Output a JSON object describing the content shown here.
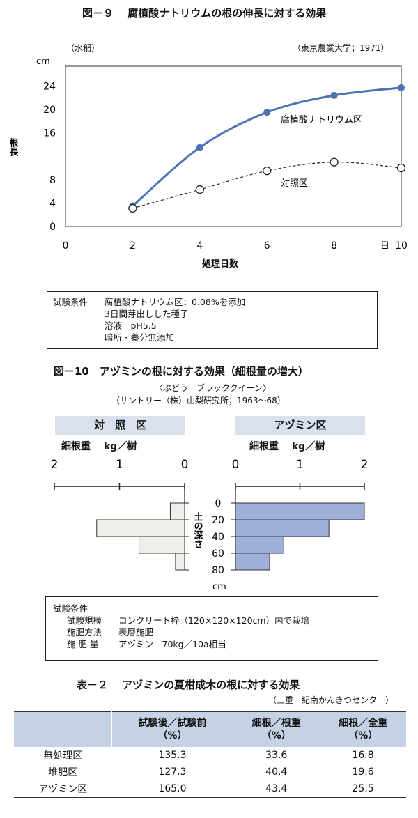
{
  "fig9": {
    "title": "図－９　 腐植酸ナトリウムの根の伸長に対する効果",
    "subject": "（水稲）",
    "source": "（東京農業大学；1971）",
    "ylabel": "根長",
    "yunit": "cm",
    "xlabel": "処理日数",
    "xunit": "日",
    "conditions": [
      {
        "label": "試験条件",
        "text": "腐植酸ナトリウム区：0.08%を添加"
      },
      {
        "label": "",
        "text": "3日間芽出しした種子"
      },
      {
        "label": "",
        "text": "溶液　pH5.5"
      },
      {
        "label": "",
        "text": "暗所・養分無添加"
      }
    ]
  },
  "fig10": {
    "title": "図－10　アヅミンの根に対する効果（細根量の増大）",
    "subtitle": "〈ぶどう　ブラッククイーン〉",
    "source": "（サントリー（株）山梨研究所；1963～68）",
    "left_header": "対　照　区",
    "right_header": "アヅミン区",
    "left_axis_label": "細根重　 kg／樹",
    "right_axis_label": "細根重　 kg／樹",
    "depth_label": "土の深さ",
    "depth_unit": "cm",
    "conditions_title": "試験条件",
    "conditions": [
      {
        "label": "試験規模",
        "text": "コンクリート枠（120×120×120cm）内で栽培"
      },
      {
        "label": "施肥方法",
        "text": "表層施肥"
      },
      {
        "label": "施 肥 量",
        "text": "アヅミン　70kg／10a相当"
      }
    ]
  },
  "table2": {
    "title": "表－２　 アヅミンの夏柑成木の根に対する効果",
    "source": "（三重　紀南かんきつセンター）",
    "headers": [
      {
        "line1": "",
        "line2": ""
      },
      {
        "line1": "試験後／試験前",
        "line2": "（%）"
      },
      {
        "line1": "細根／根重",
        "line2": "（%）"
      },
      {
        "line1": "細根／全重",
        "line2": "（%）"
      }
    ],
    "rows": [
      [
        "無処理区",
        "135.3",
        "33.6",
        "16.8"
      ],
      [
        "堆肥区",
        "127.3",
        "40.4",
        "19.6"
      ],
      [
        "アヅミン区",
        "165.0",
        "43.4",
        "25.5"
      ]
    ]
  },
  "chart_data": [
    {
      "type": "line",
      "title": "図－９　 腐植酸ナトリウムの根の伸長に対する効果",
      "xlabel": "処理日数",
      "ylabel": "根長",
      "x": [
        2,
        4,
        6,
        8,
        10
      ],
      "xlim": [
        0,
        10
      ],
      "ylim": [
        0,
        28
      ],
      "xticks": [
        "0",
        "2",
        "4",
        "6",
        "8",
        "10"
      ],
      "yticks": [
        "0",
        "4",
        "8",
        "16",
        "20",
        "24"
      ],
      "series": [
        {
          "name": "腐植酸ナトリウム区",
          "values": [
            3.5,
            13.5,
            19.5,
            22.4,
            23.7
          ],
          "color": "#4a74b4",
          "marker": "filled",
          "line": "solid"
        },
        {
          "name": "対照区",
          "values": [
            3.1,
            6.3,
            9.5,
            11.0,
            10.0
          ],
          "color": "#222222",
          "marker": "open",
          "line": "dashed"
        }
      ],
      "grid": false
    },
    {
      "type": "bar",
      "orientation": "horizontal",
      "title": "図－10　アヅミンの根に対する効果（細根量の増大）",
      "categories": [
        "0-20",
        "20-40",
        "40-60",
        "60-80"
      ],
      "depth_ticks": [
        "0",
        "20",
        "40",
        "60",
        "80"
      ],
      "xticks_left": [
        "2",
        "1",
        "0"
      ],
      "xticks_right": [
        "0",
        "1",
        "2"
      ],
      "xlim": [
        0,
        2
      ],
      "series": [
        {
          "name": "対照区",
          "values": [
            0.22,
            1.35,
            0.7,
            0.14
          ],
          "color": "#eeeeea"
        },
        {
          "name": "アヅミン区",
          "values": [
            2.0,
            1.45,
            0.75,
            0.53
          ],
          "color": "#9fb0d8"
        }
      ]
    },
    {
      "type": "table",
      "title": "表－２　 アヅミンの夏柑成木の根に対する効果",
      "columns": [
        "",
        "試験後／試験前（%）",
        "細根／根重（%）",
        "細根／全重（%）"
      ],
      "rows": [
        [
          "無処理区",
          135.3,
          33.6,
          16.8
        ],
        [
          "堆肥区",
          127.3,
          40.4,
          19.6
        ],
        [
          "アヅミン区",
          165.0,
          43.4,
          25.5
        ]
      ]
    }
  ]
}
